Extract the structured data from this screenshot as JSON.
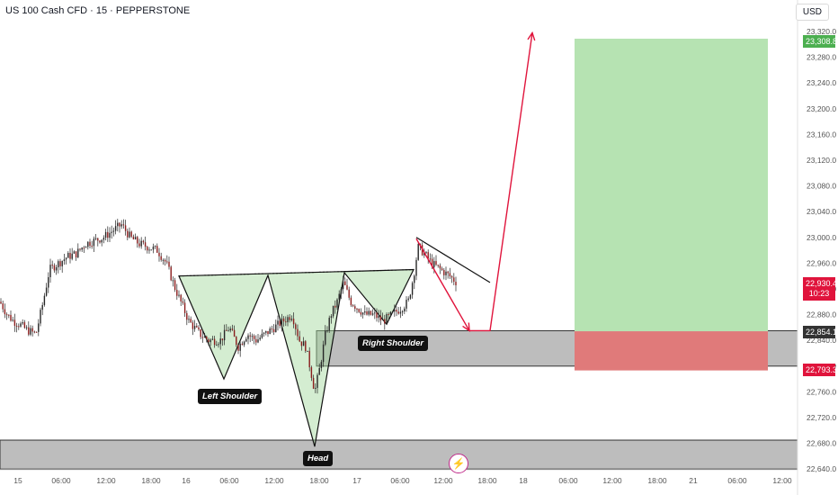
{
  "header": {
    "title": "US 100 Cash CFD · 15 · PEPPERSTONE",
    "currency": "USD"
  },
  "colors": {
    "up": "#26a69a",
    "down": "#ef5350",
    "candle": "#262626",
    "pattern_fill": "#9fd89a",
    "target_fill": "#b6e3b2",
    "stop_fill": "#e07a7a",
    "zone_fill": "#bdbdbd",
    "arrow": "#e0143c"
  },
  "labels": {
    "left_shoulder": "Left Shoulder",
    "head": "Head",
    "right_shoulder": "Right Shoulder"
  },
  "price_tags": {
    "target": "23,308.8",
    "current": "22,930.4",
    "countdown": "10:23",
    "zone_top": "22,854.1",
    "stop": "22,793.3"
  },
  "chart_data": {
    "type": "candlestick",
    "symbol": "US 100 Cash CFD",
    "timeframe": "15",
    "source": "PEPPERSTONE",
    "ylim": [
      22630,
      23330
    ],
    "y_ticks": [
      23320,
      23280,
      23240,
      23200,
      23160,
      23120,
      23080,
      23040,
      23000,
      22960,
      22920,
      22880,
      22840,
      22800,
      22760,
      22720,
      22680,
      22640
    ],
    "y_tick_labels": [
      "23,320.0",
      "23,280.0",
      "23,240.0",
      "23,200.0",
      "23,160.0",
      "23,120.0",
      "23,080.0",
      "23,040.0",
      "23,000.0",
      "22,960.0",
      "22,920.0",
      "22,880.0",
      "22,840.0",
      "22,800.0",
      "22,760.0",
      "22,720.0",
      "22,680.0",
      "22,640.0"
    ],
    "x_tick_labels": [
      "15",
      "06:00",
      "12:00",
      "18:00",
      "16",
      "06:00",
      "12:00",
      "18:00",
      "17",
      "06:00",
      "12:00",
      "18:00",
      "18",
      "06:00",
      "12:00",
      "18:00",
      "21",
      "06:00",
      "12:00"
    ],
    "price_path": [
      [
        0,
        22900
      ],
      [
        8,
        22880
      ],
      [
        15,
        22870
      ],
      [
        22,
        22865
      ],
      [
        30,
        22856
      ],
      [
        40,
        22850
      ],
      [
        48,
        22900
      ],
      [
        55,
        22950
      ],
      [
        65,
        22960
      ],
      [
        75,
        22970
      ],
      [
        85,
        22975
      ],
      [
        95,
        22990
      ],
      [
        105,
        22995
      ],
      [
        115,
        23000
      ],
      [
        125,
        23010
      ],
      [
        135,
        23020
      ],
      [
        145,
        23000
      ],
      [
        155,
        22990
      ],
      [
        165,
        22985
      ],
      [
        175,
        22980
      ],
      [
        185,
        22960
      ],
      [
        195,
        22920
      ],
      [
        210,
        22870
      ],
      [
        222,
        22850
      ],
      [
        232,
        22840
      ],
      [
        245,
        22840
      ],
      [
        255,
        22860
      ],
      [
        265,
        22830
      ],
      [
        275,
        22850
      ],
      [
        285,
        22840
      ],
      [
        295,
        22850
      ],
      [
        305,
        22860
      ],
      [
        315,
        22870
      ],
      [
        325,
        22880
      ],
      [
        333,
        22840
      ],
      [
        340,
        22830
      ],
      [
        346,
        22790
      ],
      [
        350,
        22760
      ],
      [
        356,
        22800
      ],
      [
        362,
        22850
      ],
      [
        368,
        22880
      ],
      [
        375,
        22900
      ],
      [
        382,
        22930
      ],
      [
        390,
        22900
      ],
      [
        398,
        22890
      ],
      [
        406,
        22880
      ],
      [
        416,
        22880
      ],
      [
        426,
        22870
      ],
      [
        436,
        22880
      ],
      [
        446,
        22890
      ],
      [
        454,
        22900
      ],
      [
        460,
        22940
      ],
      [
        465,
        22985
      ],
      [
        472,
        22975
      ],
      [
        480,
        22960
      ],
      [
        490,
        22950
      ],
      [
        500,
        22940
      ],
      [
        508,
        22930
      ]
    ],
    "pattern": {
      "neckline": [
        [
          199,
          22940
        ],
        [
          460,
          22950
        ]
      ],
      "left_shoulder_low": 22780,
      "head_low": 22675,
      "right_shoulder_low": 22865
    },
    "zones": {
      "demand_zone": [
        22800,
        22855
      ],
      "lower_zone": [
        22640,
        22685
      ]
    },
    "trade": {
      "target": 23308.8,
      "entry": 22854.1,
      "stop": 22793.3,
      "current": 22930.4
    },
    "projection": [
      [
        463,
        22998
      ],
      [
        522,
        22855
      ],
      [
        545,
        22855
      ],
      [
        592,
        23318
      ]
    ],
    "trendline": [
      [
        463,
        23000
      ],
      [
        545,
        22930
      ]
    ]
  }
}
